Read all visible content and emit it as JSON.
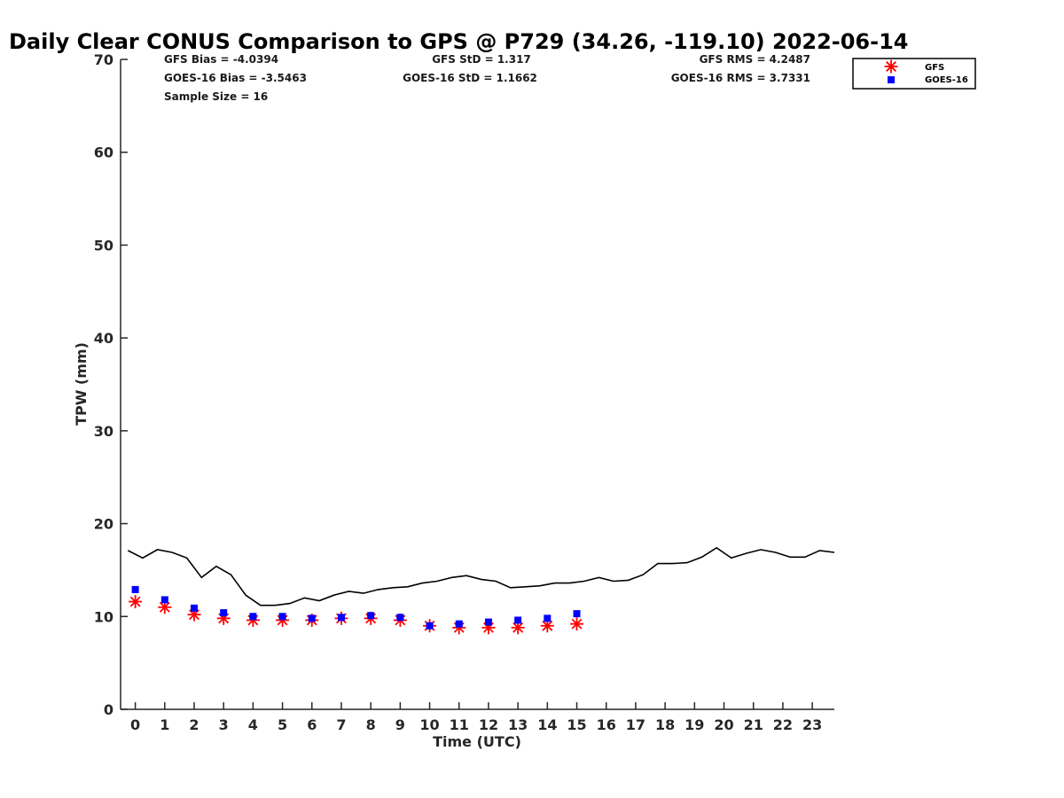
{
  "chart_data": {
    "type": "scatter",
    "title": "Daily Clear CONUS Comparison to GPS @ P729 (34.26, -119.10) 2022-06-14",
    "xlabel": "Time (UTC)",
    "ylabel": "TPW (mm)",
    "xlim": [
      -0.5,
      23.75
    ],
    "ylim": [
      0,
      70
    ],
    "x_ticks": [
      0,
      1,
      2,
      3,
      4,
      5,
      6,
      7,
      8,
      9,
      10,
      11,
      12,
      13,
      14,
      15,
      16,
      17,
      18,
      19,
      20,
      21,
      22,
      23
    ],
    "y_ticks": [
      0,
      10,
      20,
      30,
      40,
      50,
      60,
      70
    ],
    "grid": false,
    "legend": {
      "position": "top-right",
      "entries": [
        {
          "label": "GFS",
          "marker": "asterisk",
          "color": "#ff0000"
        },
        {
          "label": "GOES-16",
          "marker": "square",
          "color": "#0000ff"
        }
      ]
    },
    "stats": {
      "gfs_bias": "GFS Bias = -4.0394",
      "goes_bias": "GOES-16 Bias = -3.5463",
      "sample_size": "Sample Size = 16",
      "gfs_std": "GFS StD = 1.317",
      "goes_std": "GOES-16 StD = 1.1662",
      "gfs_rms": "GFS RMS = 4.2487",
      "goes_rms": "GOES-16 RMS = 3.7331"
    },
    "series": [
      {
        "marker": "line",
        "color": "#000000",
        "x": [
          -0.25,
          0.25,
          0.75,
          1.25,
          1.75,
          2.25,
          2.75,
          3.25,
          3.75,
          4.25,
          4.75,
          5.25,
          5.75,
          6.25,
          6.75,
          7.25,
          7.75,
          8.25,
          8.75,
          9.25,
          9.75,
          10.25,
          10.75,
          11.25,
          11.75,
          12.25,
          12.75,
          13.25,
          13.75,
          14.25,
          14.75,
          15.25,
          15.75,
          16.25,
          16.75,
          17.25,
          17.75,
          18.25,
          18.75,
          19.25,
          19.75,
          20.25,
          20.75,
          21.25,
          21.75,
          22.25,
          22.75,
          23.25,
          23.75
        ],
        "values": [
          17.1,
          16.3,
          17.2,
          16.9,
          16.3,
          14.2,
          15.4,
          14.5,
          12.3,
          11.2,
          11.2,
          11.4,
          12.0,
          11.7,
          12.3,
          12.7,
          12.5,
          12.9,
          13.1,
          13.2,
          13.6,
          13.8,
          14.2,
          14.4,
          14.0,
          13.8,
          13.1,
          13.2,
          13.3,
          13.6,
          13.6,
          13.8,
          14.2,
          13.8,
          13.9,
          14.5,
          15.7,
          15.7,
          15.8,
          16.4,
          17.4,
          16.3,
          16.8,
          17.2,
          16.9,
          16.4,
          16.4,
          17.1,
          16.9
        ]
      },
      {
        "name": "GFS",
        "marker": "asterisk",
        "color": "#ff0000",
        "x": [
          0,
          1,
          2,
          3,
          4,
          5,
          6,
          7,
          8,
          9,
          10,
          11,
          12,
          13,
          14,
          15
        ],
        "values": [
          11.6,
          11.0,
          10.2,
          9.8,
          9.6,
          9.6,
          9.6,
          9.8,
          9.8,
          9.6,
          9.0,
          8.8,
          8.8,
          8.8,
          9.0,
          9.2
        ]
      },
      {
        "name": "GOES-16",
        "marker": "square",
        "color": "#0000ff",
        "x": [
          0,
          1,
          2,
          3,
          4,
          5,
          6,
          7,
          8,
          9,
          10,
          11,
          12,
          13,
          14,
          15
        ],
        "values": [
          12.9,
          11.8,
          10.9,
          10.4,
          10.0,
          10.0,
          9.8,
          9.9,
          10.1,
          9.9,
          9.0,
          9.2,
          9.4,
          9.6,
          9.8,
          10.3
        ]
      }
    ]
  }
}
